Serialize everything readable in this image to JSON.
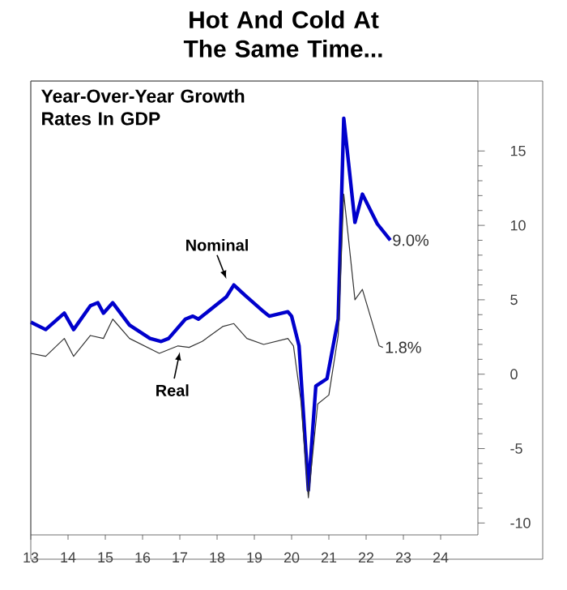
{
  "chart_data": {
    "type": "line",
    "title": "Hot And Cold At The Same Time...",
    "subtitle": "Year-Over-Year Growth Rates In GDP",
    "xlim": [
      2013,
      2025
    ],
    "ylim": [
      -10.8,
      19.7
    ],
    "xticks": [
      {
        "value": 2013,
        "label": "13"
      },
      {
        "value": 2014,
        "label": "14"
      },
      {
        "value": 2015,
        "label": "15"
      },
      {
        "value": 2016,
        "label": "16"
      },
      {
        "value": 2017,
        "label": "17"
      },
      {
        "value": 2018,
        "label": "18"
      },
      {
        "value": 2019,
        "label": "19"
      },
      {
        "value": 2020,
        "label": "20"
      },
      {
        "value": 2021,
        "label": "21"
      },
      {
        "value": 2022,
        "label": "22"
      },
      {
        "value": 2023,
        "label": "23"
      },
      {
        "value": 2024,
        "label": "24"
      }
    ],
    "yticks": [
      -10,
      -5,
      0,
      5,
      10,
      15
    ],
    "series": [
      {
        "name": "Nominal",
        "color": "#0000cc",
        "x": [
          2013.0,
          2013.4,
          2013.9,
          2014.15,
          2014.6,
          2014.8,
          2014.95,
          2015.2,
          2015.65,
          2016.2,
          2016.5,
          2016.7,
          2017.15,
          2017.35,
          2017.5,
          2017.95,
          2018.25,
          2018.45,
          2018.75,
          2019.25,
          2019.4,
          2019.9,
          2020.0,
          2020.2,
          2020.45,
          2020.65,
          2020.95,
          2021.25,
          2021.4,
          2021.7,
          2021.9,
          2022.3,
          2022.65
        ],
        "values": [
          3.5,
          3.0,
          4.1,
          3.0,
          4.6,
          4.8,
          4.1,
          4.8,
          3.3,
          2.4,
          2.2,
          2.4,
          3.7,
          3.9,
          3.7,
          4.6,
          5.2,
          6.0,
          5.3,
          4.2,
          3.9,
          4.2,
          3.9,
          1.9,
          -7.8,
          -0.8,
          -0.3,
          3.7,
          17.2,
          10.2,
          12.1,
          10.1,
          9.0
        ]
      },
      {
        "name": "Real",
        "color": "#333333",
        "x": [
          2013.0,
          2013.4,
          2013.9,
          2014.15,
          2014.6,
          2014.95,
          2015.2,
          2015.65,
          2016.45,
          2016.95,
          2017.25,
          2017.6,
          2018.15,
          2018.45,
          2018.8,
          2019.25,
          2019.9,
          2020.05,
          2020.25,
          2020.45,
          2020.7,
          2021.0,
          2021.25,
          2021.4,
          2021.7,
          2021.9,
          2022.35,
          2022.45
        ],
        "values": [
          1.4,
          1.2,
          2.4,
          1.2,
          2.6,
          2.4,
          3.7,
          2.4,
          1.4,
          1.9,
          1.8,
          2.2,
          3.2,
          3.4,
          2.4,
          2.0,
          2.4,
          1.9,
          -1.8,
          -8.3,
          -2.0,
          -1.4,
          2.6,
          12.1,
          5.0,
          5.7,
          1.9,
          1.8
        ]
      }
    ],
    "annotations": [
      {
        "text": "9.0%",
        "x": 2022.65,
        "y": 9.0
      },
      {
        "text": "1.8%",
        "x": 2022.45,
        "y": 1.8
      }
    ]
  }
}
